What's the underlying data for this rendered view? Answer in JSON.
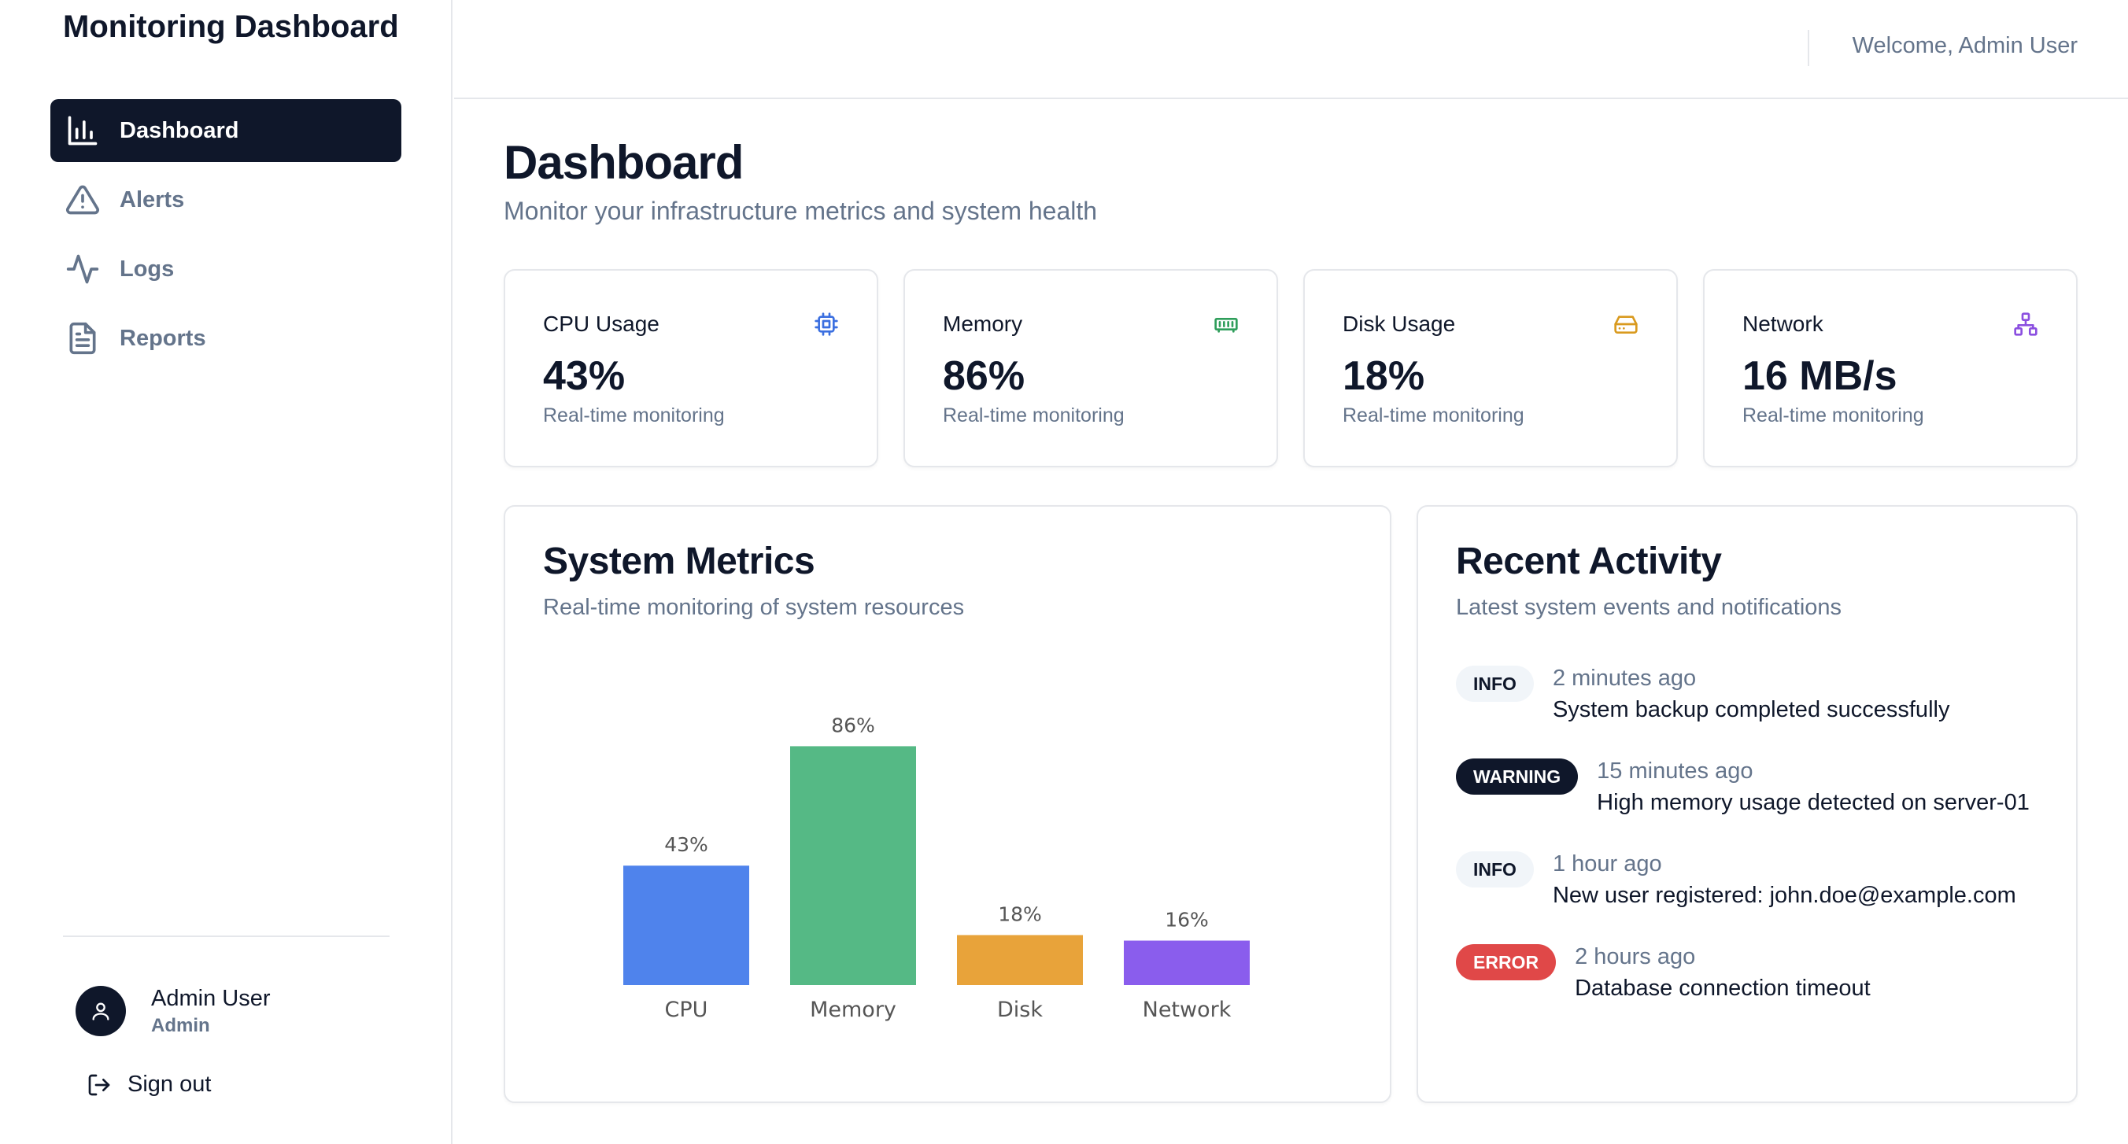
{
  "brand": {
    "title": "Monitoring Dashboard"
  },
  "sidebar": {
    "items": [
      {
        "label": "Dashboard",
        "icon": "bar-chart-icon",
        "active": true
      },
      {
        "label": "Alerts",
        "icon": "warning-triangle-icon",
        "active": false
      },
      {
        "label": "Logs",
        "icon": "activity-pulse-icon",
        "active": false
      },
      {
        "label": "Reports",
        "icon": "document-icon",
        "active": false
      }
    ],
    "user": {
      "name": "Admin User",
      "role": "Admin"
    },
    "signout_label": "Sign out"
  },
  "header": {
    "welcome": "Welcome, Admin User"
  },
  "main": {
    "title": "Dashboard",
    "subtitle": "Monitor your infrastructure metrics and system health"
  },
  "stats": [
    {
      "label": "CPU Usage",
      "value": "43%",
      "note": "Real-time monitoring",
      "icon": "cpu-chip-icon",
      "color": "#3b6fe0"
    },
    {
      "label": "Memory",
      "value": "86%",
      "note": "Real-time monitoring",
      "icon": "memory-stick-icon",
      "color": "#2f9e5b"
    },
    {
      "label": "Disk Usage",
      "value": "18%",
      "note": "Real-time monitoring",
      "icon": "hard-drive-icon",
      "color": "#d99a1f"
    },
    {
      "label": "Network",
      "value": "16 MB/s",
      "note": "Real-time monitoring",
      "icon": "network-icon",
      "color": "#8b4fe0"
    }
  ],
  "metrics_panel": {
    "title": "System Metrics",
    "subtitle": "Real-time monitoring of system resources"
  },
  "chart_data": {
    "type": "bar",
    "categories": [
      "CPU",
      "Memory",
      "Disk",
      "Network"
    ],
    "values": [
      43,
      86,
      18,
      16
    ],
    "data_labels": [
      "43%",
      "86%",
      "18%",
      "16%"
    ],
    "colors": [
      "#4f83ec",
      "#55b985",
      "#e8a33a",
      "#8a5ded"
    ],
    "ylim": [
      0,
      100
    ],
    "grid": false
  },
  "activity_panel": {
    "title": "Recent Activity",
    "subtitle": "Latest system events and notifications",
    "items": [
      {
        "level": "INFO",
        "kind": "info",
        "time": "2 minutes ago",
        "message": "System backup completed successfully"
      },
      {
        "level": "WARNING",
        "kind": "warning",
        "time": "15 minutes ago",
        "message": "High memory usage detected on server-01"
      },
      {
        "level": "INFO",
        "kind": "info",
        "time": "1 hour ago",
        "message": "New user registered: john.doe@example.com"
      },
      {
        "level": "ERROR",
        "kind": "error",
        "time": "2 hours ago",
        "message": "Database connection timeout"
      }
    ]
  }
}
